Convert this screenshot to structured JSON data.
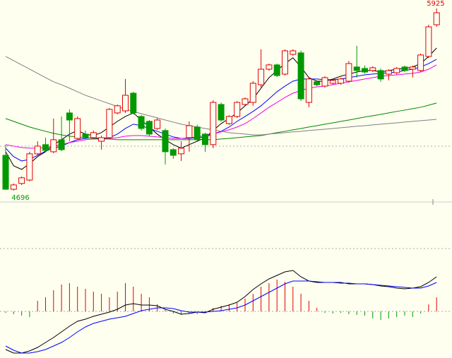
{
  "chart_data": [
    {
      "type": "candlestick",
      "ylim": [
        4624,
        5982
      ],
      "up_color": "#e00000",
      "down_color": "#009900",
      "annotations": [
        5925,
        4696
      ],
      "open": [
        4934,
        4705,
        4744,
        4767,
        4944,
        5006,
        4958,
        5039,
        5220,
        5048,
        5077,
        5053,
        5029,
        5053,
        5220,
        5234,
        5353,
        5196,
        5163,
        5115,
        5101,
        4972,
        4944,
        5053,
        5125,
        5077,
        5006,
        5277,
        5148,
        5196,
        5277,
        5291,
        5410,
        5515,
        5544,
        5482,
        5615,
        5625,
        5291,
        5430,
        5401,
        5420,
        5420,
        5434,
        5530,
        5520,
        5506,
        5506,
        5482,
        5491,
        5530,
        5515,
        5506,
        5601,
        5815
      ],
      "high": [
        5006,
        4744,
        4791,
        4958,
        5029,
        5053,
        5182,
        5196,
        5244,
        5196,
        5101,
        5101,
        5067,
        5253,
        5277,
        5449,
        5363,
        5206,
        5172,
        5185,
        5115,
        4982,
        5029,
        5163,
        5140,
        5087,
        5306,
        5290,
        5205,
        5300,
        5325,
        5434,
        5649,
        5553,
        5553,
        5649,
        5649,
        5640,
        5458,
        5440,
        5468,
        5449,
        5458,
        5570,
        5673,
        5540,
        5535,
        5520,
        5515,
        5530,
        5540,
        5540,
        5620,
        5815,
        5925
      ],
      "low": [
        4700,
        4696,
        4734,
        4758,
        4934,
        4958,
        4948,
        4962,
        5029,
        5039,
        5043,
        5043,
        4972,
        5043,
        5210,
        5220,
        5210,
        5100,
        5060,
        5105,
        4872,
        4910,
        4896,
        4958,
        5030,
        4958,
        4982,
        5160,
        5140,
        5185,
        5268,
        5268,
        5387,
        5505,
        5463,
        5472,
        5605,
        5300,
        5258,
        5400,
        5391,
        5410,
        5410,
        5425,
        5458,
        5486,
        5496,
        5430,
        5440,
        5480,
        5496,
        5460,
        5496,
        5590,
        5801
      ],
      "close": [
        4705,
        4734,
        4782,
        4944,
        4996,
        4967,
        5039,
        4972,
        5172,
        5182,
        5053,
        5087,
        5053,
        5244,
        5268,
        5339,
        5220,
        5115,
        5077,
        5172,
        4958,
        4934,
        4982,
        5134,
        5039,
        5006,
        5291,
        5172,
        5196,
        5291,
        5315,
        5420,
        5515,
        5544,
        5472,
        5639,
        5639,
        5315,
        5449,
        5410,
        5458,
        5439,
        5449,
        5553,
        5506,
        5496,
        5525,
        5449,
        5506,
        5520,
        5506,
        5530,
        5611,
        5801,
        5896
      ],
      "series": [
        {
          "color": "#000000",
          "values": [
            4958,
            4863,
            4839,
            4877,
            4925,
            4958,
            5006,
            5039,
            5077,
            5101,
            5077,
            5067,
            5087,
            5125,
            5163,
            5196,
            5220,
            5172,
            5125,
            5077,
            5039,
            5006,
            4982,
            5006,
            5029,
            5053,
            5101,
            5148,
            5182,
            5220,
            5268,
            5315,
            5387,
            5458,
            5506,
            5553,
            5592,
            5530,
            5458,
            5434,
            5434,
            5449,
            5468,
            5482,
            5496,
            5506,
            5506,
            5496,
            5506,
            5515,
            5520,
            5530,
            5553,
            5601,
            5658
          ]
        },
        {
          "color": "#0000ff",
          "values": [
            4982,
            4925,
            4896,
            4906,
            4934,
            4962,
            4982,
            4996,
            5020,
            5039,
            5048,
            5053,
            5048,
            5053,
            5077,
            5115,
            5144,
            5134,
            5115,
            5096,
            5077,
            5058,
            5048,
            5048,
            5053,
            5058,
            5077,
            5096,
            5125,
            5163,
            5196,
            5230,
            5268,
            5315,
            5363,
            5401,
            5434,
            5449,
            5449,
            5449,
            5444,
            5444,
            5449,
            5458,
            5468,
            5477,
            5482,
            5487,
            5491,
            5496,
            5506,
            5515,
            5530,
            5553,
            5582
          ]
        },
        {
          "color": "#ee00ee",
          "values": [
            5006,
            4996,
            4987,
            4982,
            4982,
            4987,
            4996,
            5006,
            5020,
            5029,
            5039,
            5044,
            5044,
            5048,
            5053,
            5063,
            5067,
            5067,
            5063,
            5058,
            5053,
            5048,
            5048,
            5053,
            5058,
            5067,
            5077,
            5092,
            5106,
            5125,
            5148,
            5182,
            5220,
            5258,
            5291,
            5325,
            5353,
            5372,
            5387,
            5396,
            5401,
            5410,
            5420,
            5430,
            5439,
            5449,
            5458,
            5468,
            5472,
            5477,
            5482,
            5487,
            5496,
            5515,
            5544
          ]
        },
        {
          "color": "#008800",
          "values": [
            5182,
            5163,
            5144,
            5125,
            5110,
            5096,
            5082,
            5072,
            5063,
            5058,
            5053,
            5048,
            5044,
            5044,
            5039,
            5039,
            5039,
            5039,
            5039,
            5039,
            5039,
            5039,
            5039,
            5039,
            5039,
            5039,
            5039,
            5044,
            5048,
            5053,
            5058,
            5063,
            5067,
            5077,
            5087,
            5096,
            5106,
            5115,
            5125,
            5134,
            5144,
            5153,
            5163,
            5172,
            5182,
            5192,
            5201,
            5210,
            5220,
            5230,
            5239,
            5249,
            5258,
            5272,
            5287
          ]
        },
        {
          "color": "#808080",
          "values": [
            5601,
            5573,
            5544,
            5516,
            5487,
            5458,
            5430,
            5410,
            5387,
            5363,
            5339,
            5320,
            5301,
            5282,
            5263,
            5244,
            5230,
            5215,
            5201,
            5187,
            5172,
            5158,
            5144,
            5134,
            5125,
            5115,
            5106,
            5096,
            5087,
            5082,
            5077,
            5072,
            5072,
            5077,
            5082,
            5087,
            5092,
            5096,
            5101,
            5106,
            5110,
            5115,
            5120,
            5125,
            5130,
            5134,
            5139,
            5144,
            5149,
            5153,
            5158,
            5163,
            5168,
            5172,
            5177
          ]
        }
      ]
    },
    {
      "type": "macd",
      "ylim": [
        -66,
        151
      ],
      "up_color": "#e00000",
      "down_color": "#009900",
      "histogram": [
        -2,
        -4,
        -6,
        -8,
        15,
        20,
        30,
        38,
        40,
        35,
        32,
        28,
        25,
        20,
        28,
        40,
        35,
        25,
        20,
        10,
        2,
        -3,
        -5,
        -3,
        -4,
        -2,
        5,
        8,
        10,
        12,
        18,
        25,
        35,
        40,
        45,
        42,
        35,
        25,
        15,
        5,
        -2,
        -3,
        -2,
        -4,
        -5,
        -6,
        -10,
        -12,
        -10,
        -8,
        -6,
        -8,
        -3,
        10,
        20
      ],
      "series": [
        {
          "color": "#000000",
          "values": [
            -54,
            -59,
            -59,
            -56,
            -51,
            -44,
            -37,
            -29,
            -21,
            -14,
            -11,
            -7,
            -4,
            -1,
            3,
            9,
            11,
            9,
            9,
            8,
            3,
            0,
            -4,
            -3,
            -1,
            -2,
            3,
            6,
            9,
            13,
            21,
            31,
            39,
            46,
            51,
            56,
            58,
            49,
            43,
            41,
            41,
            41,
            41,
            39,
            39,
            39,
            38,
            36,
            35,
            33,
            32,
            33,
            35,
            41,
            49
          ]
        },
        {
          "color": "#0000ff",
          "values": [
            -49,
            -55,
            -59,
            -59,
            -57,
            -54,
            -49,
            -44,
            -37,
            -29,
            -22,
            -17,
            -14,
            -11,
            -9,
            -7,
            -3,
            1,
            3,
            5,
            5,
            4,
            1,
            -1,
            -1,
            -1,
            0,
            1,
            3,
            5,
            9,
            15,
            21,
            27,
            33,
            39,
            43,
            43,
            43,
            42,
            41,
            41,
            40,
            40,
            39,
            39,
            38,
            37,
            36,
            35,
            34,
            33,
            33,
            36,
            41
          ]
        }
      ]
    }
  ]
}
